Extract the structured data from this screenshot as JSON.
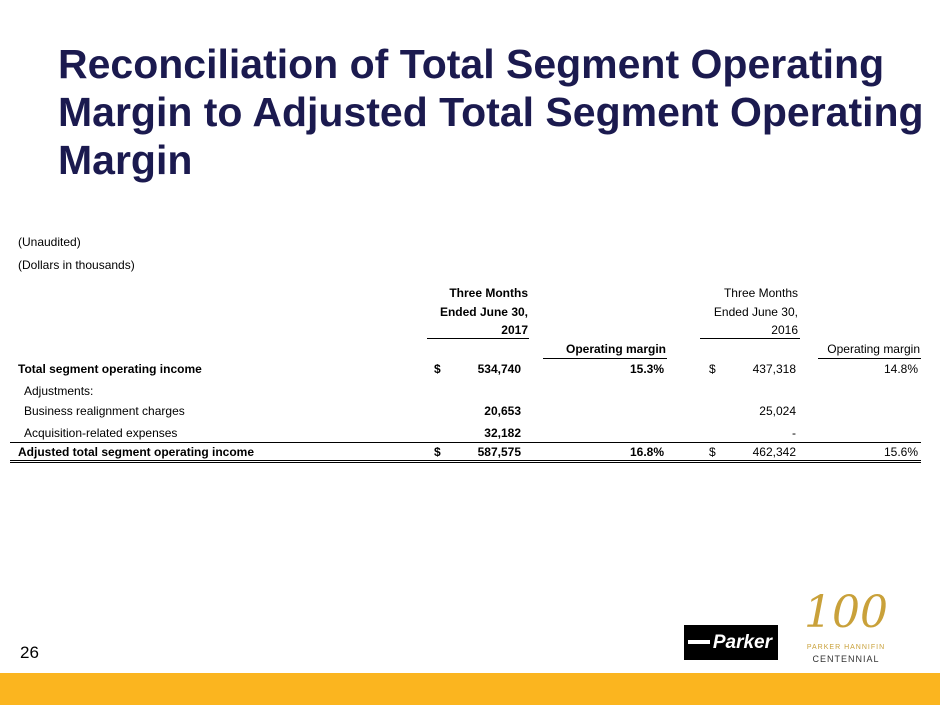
{
  "title": "Reconciliation of Total Segment Operating Margin to Adjusted Total Segment Operating Margin",
  "notes": [
    "(Unaudited)",
    "(Dollars in thousands)"
  ],
  "headers": {
    "col2017": [
      "Three Months",
      "Ended June 30,",
      "2017"
    ],
    "col2016": [
      "Three Months",
      "Ended June 30,",
      "2016"
    ],
    "margin": "Operating margin"
  },
  "rows": [
    {
      "label": "Total segment operating income",
      "cur": "$",
      "v2017": "534,740",
      "m2017": "15.3%",
      "cur2": "$",
      "v2016": "437,318",
      "m2016": "14.8%"
    },
    {
      "label": "Adjustments:"
    },
    {
      "label": "Business realignment charges",
      "v2017": "20,653",
      "v2016": "25,024"
    },
    {
      "label": "Acquisition-related expenses",
      "v2017": "32,182",
      "v2016": "-"
    },
    {
      "label": "Adjusted total segment operating income",
      "cur": "$",
      "v2017": "587,575",
      "m2017": "16.8%",
      "cur2": "$",
      "v2016": "462,342",
      "m2016": "15.6%"
    }
  ],
  "page_number": "26",
  "logos": {
    "parker": "Parker",
    "centennial_number": "100",
    "centennial_line1": "PARKER HANNIFIN",
    "centennial_line2": "CENTENNIAL"
  },
  "colors": {
    "title": "#1b1a4f",
    "bar": "#fbb51f"
  }
}
